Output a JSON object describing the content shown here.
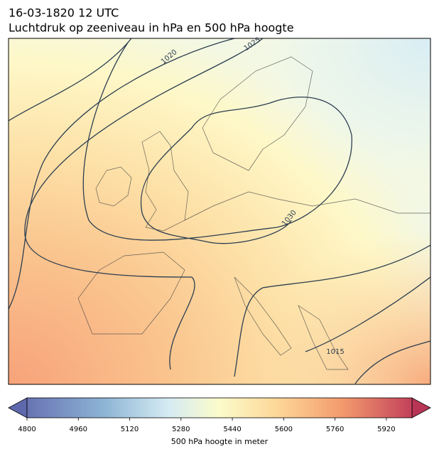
{
  "header": {
    "title": "16-03-1820 12 UTC",
    "subtitle": "Luchtdruk op zeeniveau in hPa en 500 hPa hoogte"
  },
  "map": {
    "contour_labels": [
      "1020",
      "1025",
      "1030",
      "1015"
    ]
  },
  "colorbar": {
    "label": "500 hPa hoogte in meter",
    "lim": [
      4800,
      6000
    ],
    "ticks": [
      4800,
      4960,
      5120,
      5280,
      5440,
      5600,
      5760,
      5920
    ]
  }
}
